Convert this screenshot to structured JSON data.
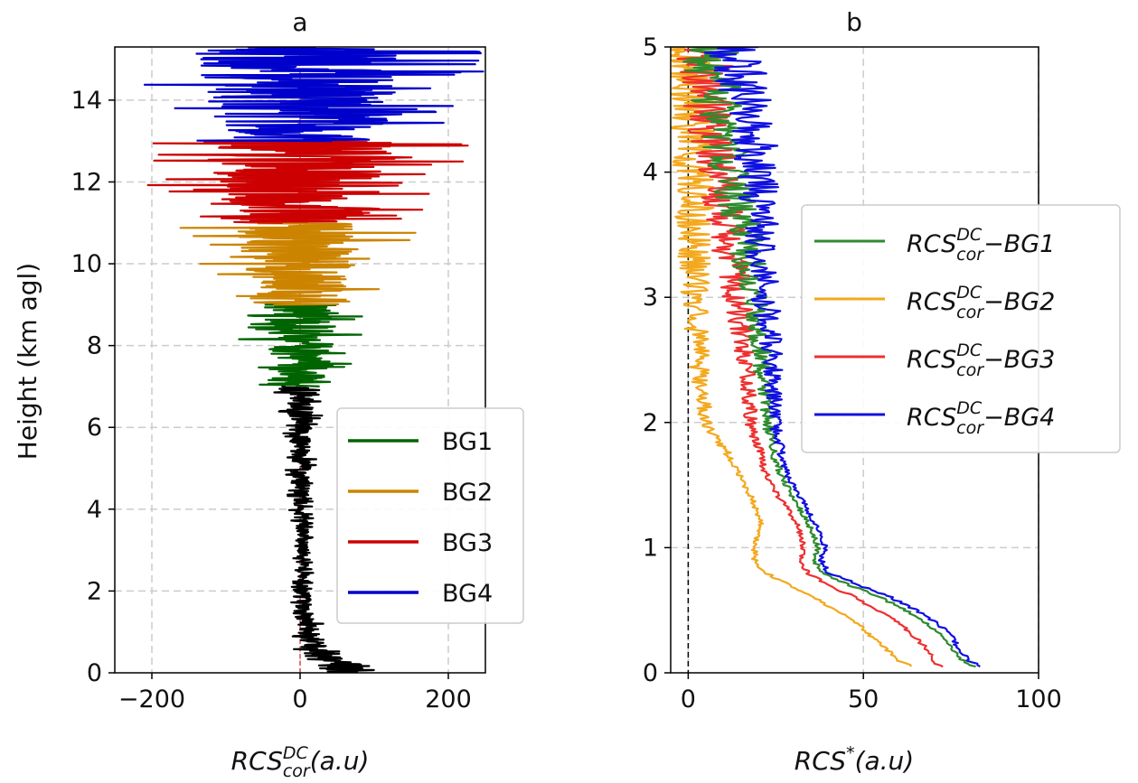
{
  "chart_data": [
    {
      "type": "line",
      "title": "a",
      "ylabel": "Height (km agl)",
      "xlabel": {
        "base": "RCS",
        "sup": "DC",
        "sub": "cor",
        "suffix": "(a.u)"
      },
      "xlim": [
        -250,
        250
      ],
      "ylim": [
        0,
        15.3
      ],
      "xticks": [
        -200,
        0,
        200
      ],
      "yticks": [
        0,
        2,
        4,
        6,
        8,
        10,
        12,
        14
      ],
      "xtick_labels": [
        "−200",
        "0",
        "200"
      ],
      "ytick_labels": [
        "0",
        "2",
        "4",
        "6",
        "8",
        "10",
        "12",
        "14"
      ],
      "grid": true,
      "zero_line": {
        "x": 0,
        "color": "#d62728",
        "style": "dashed"
      },
      "legend_position": "lower-right",
      "legend": [
        "BG1",
        "BG2",
        "BG3",
        "BG4"
      ],
      "segments": [
        {
          "name": "",
          "color": "#000000",
          "range_km": [
            0,
            7
          ],
          "envelope": [
            [
              0,
              70
            ],
            [
              0.2,
              65
            ],
            [
              0.5,
              45
            ],
            [
              1,
              25
            ],
            [
              2,
              16
            ],
            [
              3,
              14
            ],
            [
              4,
              18
            ],
            [
              5,
              22
            ],
            [
              6,
              28
            ],
            [
              7,
              40
            ]
          ],
          "center": [
            [
              0,
              65
            ],
            [
              0.3,
              40
            ],
            [
              0.8,
              15
            ],
            [
              1.5,
              5
            ],
            [
              3,
              3
            ],
            [
              7,
              0
            ]
          ]
        },
        {
          "name": "BG1",
          "color": "#006400",
          "range_km": [
            7,
            9
          ],
          "envelope": [
            [
              7,
              55
            ],
            [
              8,
              80
            ],
            [
              9,
              100
            ]
          ],
          "center": [
            [
              7,
              0
            ],
            [
              9,
              0
            ]
          ]
        },
        {
          "name": "BG2",
          "color": "#cc8400",
          "range_km": [
            9,
            11
          ],
          "envelope": [
            [
              9,
              100
            ],
            [
              10,
              140
            ],
            [
              11,
              165
            ]
          ],
          "center": [
            [
              9,
              0
            ],
            [
              11,
              0
            ]
          ]
        },
        {
          "name": "BG3",
          "color": "#cc0000",
          "range_km": [
            11,
            13
          ],
          "envelope": [
            [
              11,
              165
            ],
            [
              12,
              210
            ],
            [
              13,
              240
            ]
          ],
          "center": [
            [
              11,
              0
            ],
            [
              13,
              0
            ]
          ]
        },
        {
          "name": "BG4",
          "color": "#0000cc",
          "range_km": [
            13,
            15.3
          ],
          "envelope": [
            [
              13,
              190
            ],
            [
              14,
              240
            ],
            [
              15.3,
              260
            ]
          ],
          "center": [
            [
              13,
              0
            ],
            [
              15.3,
              0
            ]
          ]
        }
      ]
    },
    {
      "type": "line",
      "title": "b",
      "ylabel": "",
      "xlabel": {
        "base": "RCS",
        "sup": "*",
        "suffix": "(a.u)"
      },
      "xlim": [
        -5,
        100
      ],
      "ylim": [
        0,
        5
      ],
      "xticks": [
        0,
        50,
        100
      ],
      "yticks": [
        0,
        1,
        2,
        3,
        4,
        5
      ],
      "xtick_labels": [
        "0",
        "50",
        "100"
      ],
      "ytick_labels": [
        "0",
        "1",
        "2",
        "3",
        "4",
        "5"
      ],
      "grid": true,
      "zero_line": {
        "x": 0,
        "color": "#000000",
        "style": "dashed"
      },
      "legend_position": "center-right",
      "legend": [
        {
          "base": "RCS",
          "sup": "DC",
          "sub": "cor",
          "suffix": "−BG1"
        },
        {
          "base": "RCS",
          "sup": "DC",
          "sub": "cor",
          "suffix": "−BG2"
        },
        {
          "base": "RCS",
          "sup": "DC",
          "sub": "cor",
          "suffix": "−BG3"
        },
        {
          "base": "RCS",
          "sup": "DC",
          "sub": "cor",
          "suffix": "−BG4"
        }
      ],
      "series": [
        {
          "name": "RCS_cor^DC − BG1",
          "color": "#2e8b2e",
          "y": [
            0.05,
            0.1,
            0.2,
            0.3,
            0.4,
            0.5,
            0.6,
            0.7,
            0.8,
            0.9,
            1.0,
            1.1,
            1.2,
            1.4,
            1.6,
            1.8,
            2.0,
            2.5,
            3.0,
            3.5,
            4.0,
            4.5,
            5.0
          ],
          "x": [
            82,
            78,
            75,
            72,
            68,
            62,
            55,
            46,
            38,
            36,
            37,
            36,
            34,
            30,
            26,
            24,
            23,
            21,
            19,
            16,
            12,
            9,
            6
          ]
        },
        {
          "name": "RCS_cor^DC − BG2",
          "color": "#f4a81d",
          "y": [
            0.05,
            0.1,
            0.2,
            0.3,
            0.4,
            0.5,
            0.6,
            0.7,
            0.8,
            0.9,
            1.0,
            1.1,
            1.2,
            1.4,
            1.6,
            1.8,
            2.0,
            2.5,
            3.0,
            3.5,
            4.0,
            4.5,
            5.0
          ],
          "x": [
            64,
            60,
            56,
            52,
            48,
            42,
            36,
            29,
            22,
            19,
            19,
            20,
            21,
            18,
            14,
            10,
            5,
            3,
            2,
            2,
            1,
            1,
            1
          ]
        },
        {
          "name": "RCS_cor^DC − BG3",
          "color": "#ee3030",
          "y": [
            0.05,
            0.1,
            0.2,
            0.3,
            0.4,
            0.5,
            0.6,
            0.7,
            0.8,
            0.9,
            1.0,
            1.1,
            1.2,
            1.4,
            1.6,
            1.8,
            2.0,
            2.5,
            3.0,
            3.5,
            4.0,
            4.5,
            5.0
          ],
          "x": [
            72,
            70,
            68,
            64,
            60,
            54,
            48,
            40,
            34,
            32,
            33,
            32,
            31,
            26,
            22,
            20,
            18,
            16,
            14,
            11,
            8,
            6,
            4
          ]
        },
        {
          "name": "RCS_cor^DC − BG4",
          "color": "#1010e0",
          "y": [
            0.05,
            0.1,
            0.2,
            0.3,
            0.4,
            0.5,
            0.6,
            0.7,
            0.8,
            0.9,
            1.0,
            1.1,
            1.2,
            1.4,
            1.6,
            1.8,
            2.0,
            2.5,
            3.0,
            3.5,
            4.0,
            4.5,
            5.0
          ],
          "x": [
            84,
            80,
            77,
            75,
            71,
            65,
            58,
            49,
            40,
            38,
            39,
            38,
            36,
            32,
            28,
            26,
            25,
            24,
            22,
            21,
            20,
            18,
            12
          ]
        }
      ]
    }
  ]
}
